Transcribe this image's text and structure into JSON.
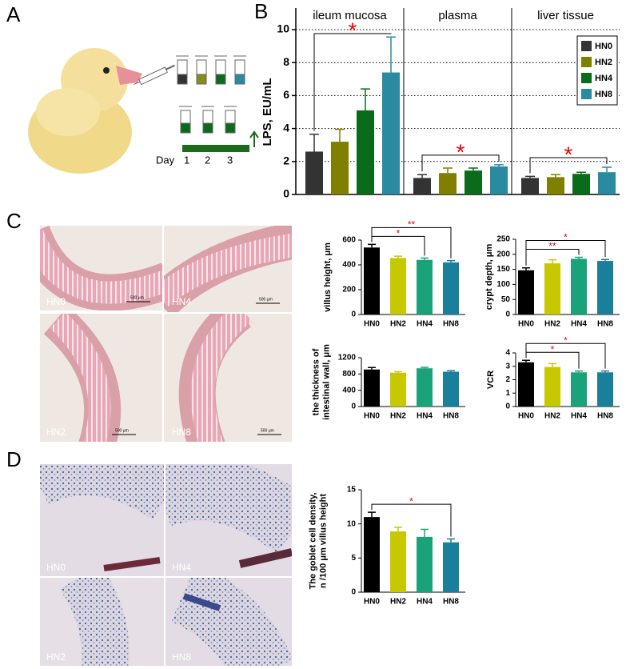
{
  "panel_labels": [
    "A",
    "B",
    "C",
    "D"
  ],
  "panel_a": {
    "timeline_label": "Day",
    "days": [
      "1",
      "2",
      "3"
    ]
  },
  "panel_c_images": [
    {
      "label": "HN0",
      "scale": "500 μm"
    },
    {
      "label": "HN4",
      "scale": "500 μm"
    },
    {
      "label": "HN2",
      "scale": "500 μm"
    },
    {
      "label": "HN8",
      "scale": "500 μm"
    }
  ],
  "panel_d_images": [
    {
      "label": "HN0"
    },
    {
      "label": "HN4"
    },
    {
      "label": "HN2"
    },
    {
      "label": "HN8"
    }
  ],
  "chart_data": [
    {
      "type": "grouped-bar",
      "ylabel": "LPS, EU/mL",
      "categories": [
        "ileum mucosa",
        "plasma",
        "liver tissue"
      ],
      "series": [
        {
          "name": "HN0",
          "color": "#333333",
          "values": [
            2.6,
            1.0,
            1.0
          ],
          "errors": [
            1.05,
            0.2,
            0.1
          ]
        },
        {
          "name": "HN2",
          "color": "#808000",
          "values": [
            3.2,
            1.3,
            1.05
          ],
          "errors": [
            0.75,
            0.3,
            0.15
          ]
        },
        {
          "name": "HN4",
          "color": "#0b6b1c",
          "values": [
            5.1,
            1.45,
            1.25
          ],
          "errors": [
            1.3,
            0.15,
            0.1
          ]
        },
        {
          "name": "HN8",
          "color": "#2a8aa0",
          "values": [
            7.4,
            1.7,
            1.35
          ],
          "errors": [
            2.15,
            0.1,
            0.3
          ]
        }
      ],
      "ylim": [
        0,
        10
      ],
      "yticks": [
        0,
        2,
        4,
        6,
        8,
        10
      ],
      "grid": true,
      "legend": "upper right",
      "annotations": [
        {
          "label": "*",
          "category": "ileum mucosa",
          "groups": [
            "HN0",
            "HN8"
          ]
        },
        {
          "label": "*",
          "category": "plasma",
          "groups": [
            "HN0",
            "HN8"
          ]
        },
        {
          "label": "*",
          "category": "liver tissue",
          "groups": [
            "HN0",
            "HN8"
          ]
        }
      ]
    },
    {
      "type": "bar",
      "ylabel": [
        "villus height, μm"
      ],
      "categories": [
        "HN0",
        "HN2",
        "HN4",
        "HN8"
      ],
      "values": [
        540,
        455,
        440,
        420
      ],
      "errors": [
        25,
        15,
        15,
        15
      ],
      "colors": [
        "#000000",
        "#c8c800",
        "#1aa37a",
        "#1a7f9a"
      ],
      "ylim": [
        0,
        600
      ],
      "yticks": [
        0,
        200,
        400,
        600
      ],
      "annotations": [
        {
          "label": "*",
          "groups": [
            "HN0",
            "HN4"
          ]
        },
        {
          "label": "**",
          "groups": [
            "HN0",
            "HN8"
          ]
        }
      ]
    },
    {
      "type": "bar",
      "ylabel": [
        "crypt depth, μm"
      ],
      "categories": [
        "HN0",
        "HN2",
        "HN4",
        "HN8"
      ],
      "values": [
        147,
        170,
        185,
        178
      ],
      "errors": [
        8,
        12,
        5,
        5
      ],
      "colors": [
        "#000000",
        "#c8c800",
        "#1aa37a",
        "#1a7f9a"
      ],
      "ylim": [
        0,
        250
      ],
      "yticks": [
        0,
        50,
        100,
        150,
        200,
        250
      ],
      "annotations": [
        {
          "label": "**",
          "groups": [
            "HN0",
            "HN4"
          ]
        },
        {
          "label": "*",
          "groups": [
            "HN0",
            "HN8"
          ]
        }
      ]
    },
    {
      "type": "bar",
      "ylabel": [
        "the thickness of",
        "intestinal wall, μm"
      ],
      "categories": [
        "HN0",
        "HN2",
        "HN4",
        "HN8"
      ],
      "values": [
        910,
        830,
        940,
        855
      ],
      "errors": [
        50,
        25,
        25,
        25
      ],
      "colors": [
        "#000000",
        "#c8c800",
        "#1aa37a",
        "#1a7f9a"
      ],
      "ylim": [
        0,
        1200
      ],
      "yticks": [
        0,
        400,
        800,
        1200
      ]
    },
    {
      "type": "bar",
      "ylabel": [
        "VCR"
      ],
      "categories": [
        "HN0",
        "HN2",
        "HN4",
        "HN8"
      ],
      "values": [
        3.3,
        2.95,
        2.55,
        2.55
      ],
      "errors": [
        0.15,
        0.25,
        0.1,
        0.1
      ],
      "colors": [
        "#000000",
        "#c8c800",
        "#1aa37a",
        "#1a7f9a"
      ],
      "ylim": [
        0,
        4
      ],
      "yticks": [
        0,
        1,
        2,
        3,
        4
      ],
      "annotations": [
        {
          "label": "*",
          "groups": [
            "HN0",
            "HN4"
          ]
        },
        {
          "label": "*",
          "groups": [
            "HN0",
            "HN8"
          ]
        }
      ]
    },
    {
      "type": "bar",
      "ylabel": [
        "The goblet cell density,",
        "n /100 μm villus height"
      ],
      "categories": [
        "HN0",
        "HN2",
        "HN4",
        "HN8"
      ],
      "values": [
        11,
        8.9,
        8.1,
        7.3
      ],
      "errors": [
        0.7,
        0.6,
        1.1,
        0.5
      ],
      "colors": [
        "#000000",
        "#c8c800",
        "#1aa37a",
        "#1a7f9a"
      ],
      "ylim": [
        0,
        15
      ],
      "yticks": [
        0,
        5,
        10,
        15
      ],
      "annotations": [
        {
          "label": "*",
          "groups": [
            "HN0",
            "HN8"
          ]
        }
      ]
    }
  ]
}
